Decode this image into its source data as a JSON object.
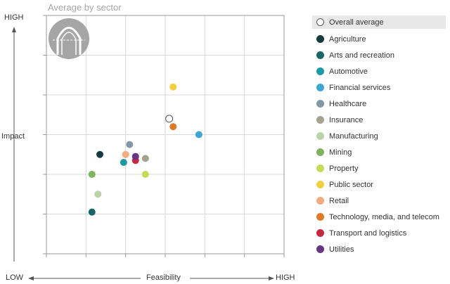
{
  "chart_data": {
    "type": "scatter",
    "title": "Average by sector",
    "xlabel": "Feasibility",
    "ylabel": "Impact",
    "x_low_label": "LOW",
    "x_high_label": "HIGH",
    "y_high_label": "HIGH",
    "xlim": [
      0,
      6
    ],
    "ylim": [
      0,
      6
    ],
    "grid": true,
    "legend_position": "right",
    "series": [
      {
        "name": "Overall average",
        "color": "#ffffff",
        "hollow": true,
        "x": 3.1,
        "y": 3.4
      },
      {
        "name": "Agriculture",
        "color": "#123a3f",
        "x": 1.35,
        "y": 2.5
      },
      {
        "name": "Arts and recreation",
        "color": "#18656b",
        "x": 1.15,
        "y": 1.05
      },
      {
        "name": "Automotive",
        "color": "#1a9aa6",
        "x": 1.95,
        "y": 2.3
      },
      {
        "name": "Financial services",
        "color": "#3aa7d4",
        "x": 3.85,
        "y": 3.0
      },
      {
        "name": "Healthcare",
        "color": "#8497a6",
        "x": 2.1,
        "y": 2.75
      },
      {
        "name": "Insurance",
        "color": "#a3a38e",
        "x": 2.5,
        "y": 2.4
      },
      {
        "name": "Manufacturing",
        "color": "#b9d4a6",
        "x": 1.3,
        "y": 1.5
      },
      {
        "name": "Mining",
        "color": "#7fb35c",
        "x": 1.15,
        "y": 2.0
      },
      {
        "name": "Property",
        "color": "#c2dd55",
        "x": 2.5,
        "y": 2.0
      },
      {
        "name": "Public sector",
        "color": "#f3cf3e",
        "x": 3.2,
        "y": 4.2
      },
      {
        "name": "Retail",
        "color": "#f2ac7e",
        "x": 2.0,
        "y": 2.5
      },
      {
        "name": "Technology, media, and telecom",
        "color": "#e07a26",
        "x": 3.2,
        "y": 3.2
      },
      {
        "name": "Transport and logistics",
        "color": "#c8283f",
        "x": 2.25,
        "y": 2.35
      },
      {
        "name": "Utilities",
        "color": "#6a3484",
        "x": 2.25,
        "y": 2.45
      }
    ]
  },
  "legend": {
    "items": [
      {
        "label": "Overall average",
        "color": "#ffffff",
        "hollow": true
      },
      {
        "label": "Agriculture",
        "color": "#123a3f"
      },
      {
        "label": "Arts and recreation",
        "color": "#18656b"
      },
      {
        "label": "Automotive",
        "color": "#1a9aa6"
      },
      {
        "label": "Financial services",
        "color": "#3aa7d4"
      },
      {
        "label": "Healthcare",
        "color": "#8497a6"
      },
      {
        "label": "Insurance",
        "color": "#a3a38e"
      },
      {
        "label": "Manufacturing",
        "color": "#b9d4a6"
      },
      {
        "label": "Mining",
        "color": "#7fb35c"
      },
      {
        "label": "Property",
        "color": "#c2dd55"
      },
      {
        "label": "Public sector",
        "color": "#f3cf3e"
      },
      {
        "label": "Retail",
        "color": "#f2ac7e"
      },
      {
        "label": "Technology, media, and telecom",
        "color": "#e07a26"
      },
      {
        "label": "Transport and logistics",
        "color": "#c8283f"
      },
      {
        "label": "Utilities",
        "color": "#6a3484"
      }
    ]
  },
  "logo": {
    "name": "arch-logo"
  }
}
